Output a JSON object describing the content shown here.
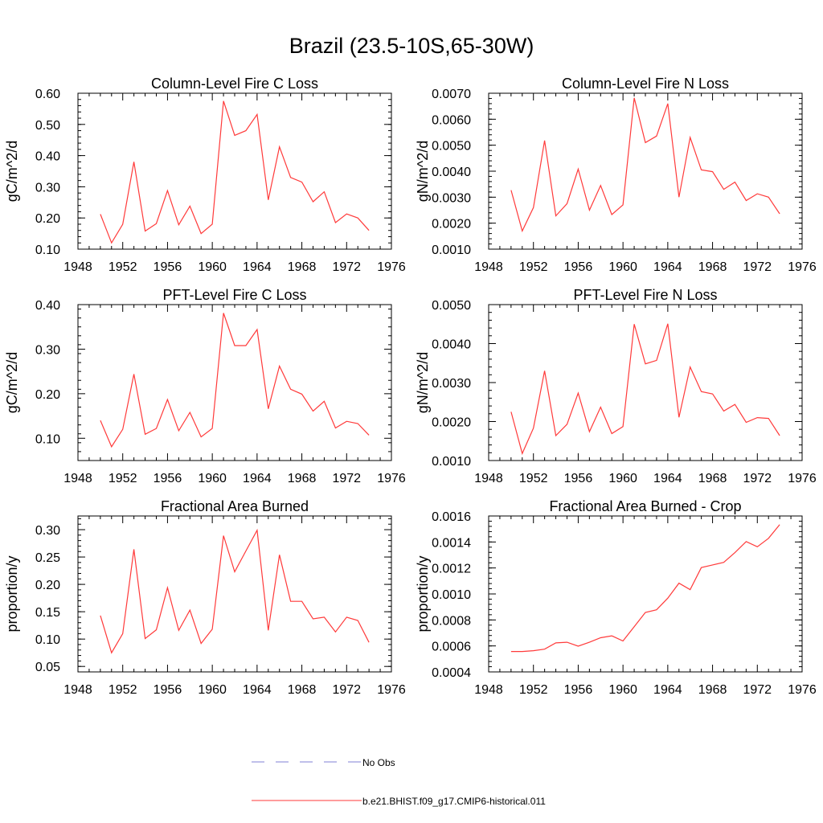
{
  "figure": {
    "title": "Brazil (23.5-10S,65-30W)"
  },
  "legend": {
    "items": [
      {
        "label": "No Obs",
        "color": "#7f7fd6",
        "dash": true
      },
      {
        "label": "b.e21.BHIST.f09_g17.CMIP6-historical.011",
        "color": "#ff3a3a",
        "dash": false
      }
    ]
  },
  "chart_data": [
    {
      "type": "line",
      "title": "Column-Level Fire C Loss",
      "ylabel": "gC/m^2/d",
      "xlim": [
        1948,
        1976
      ],
      "ylim": [
        0.1,
        0.6
      ],
      "xticks": [
        1948,
        1952,
        1956,
        1960,
        1964,
        1968,
        1972,
        1976
      ],
      "yticks": [
        0.1,
        0.2,
        0.3,
        0.4,
        0.5,
        0.6
      ],
      "ytick_labels": [
        "0.10",
        "0.20",
        "0.30",
        "0.40",
        "0.50",
        "0.60"
      ],
      "x": [
        1950,
        1951,
        1952,
        1953,
        1954,
        1955,
        1956,
        1957,
        1958,
        1959,
        1960,
        1961,
        1962,
        1963,
        1964,
        1965,
        1966,
        1967,
        1968,
        1969,
        1970,
        1971,
        1972,
        1973,
        1974
      ],
      "series": [
        {
          "values": [
            0.212,
            0.12,
            0.18,
            0.38,
            0.158,
            0.182,
            0.288,
            0.178,
            0.238,
            0.15,
            0.18,
            0.575,
            0.465,
            0.48,
            0.532,
            0.258,
            0.428,
            0.33,
            0.315,
            0.252,
            0.284,
            0.185,
            0.213,
            0.2,
            0.16
          ]
        }
      ]
    },
    {
      "type": "line",
      "title": "Column-Level Fire N Loss",
      "ylabel": "gN/m^2/d",
      "xlim": [
        1948,
        1976
      ],
      "ylim": [
        0.001,
        0.007
      ],
      "xticks": [
        1948,
        1952,
        1956,
        1960,
        1964,
        1968,
        1972,
        1976
      ],
      "yticks": [
        0.001,
        0.002,
        0.003,
        0.004,
        0.005,
        0.006,
        0.007
      ],
      "ytick_labels": [
        "0.0010",
        "0.0020",
        "0.0030",
        "0.0040",
        "0.0050",
        "0.0060",
        "0.0070"
      ],
      "x": [
        1950,
        1951,
        1952,
        1953,
        1954,
        1955,
        1956,
        1957,
        1958,
        1959,
        1960,
        1961,
        1962,
        1963,
        1964,
        1965,
        1966,
        1967,
        1968,
        1969,
        1970,
        1971,
        1972,
        1973,
        1974
      ],
      "series": [
        {
          "values": [
            0.00327,
            0.0017,
            0.0026,
            0.00518,
            0.00228,
            0.00275,
            0.00408,
            0.0025,
            0.00345,
            0.00233,
            0.0027,
            0.00682,
            0.0051,
            0.00535,
            0.0066,
            0.003,
            0.0053,
            0.00405,
            0.00398,
            0.0033,
            0.00358,
            0.00287,
            0.00313,
            0.003,
            0.00236
          ]
        }
      ]
    },
    {
      "type": "line",
      "title": "PFT-Level Fire C Loss",
      "ylabel": "gC/m^2/d",
      "xlim": [
        1948,
        1976
      ],
      "ylim": [
        0.05,
        0.4
      ],
      "xticks": [
        1948,
        1952,
        1956,
        1960,
        1964,
        1968,
        1972,
        1976
      ],
      "yticks": [
        0.1,
        0.2,
        0.3,
        0.4
      ],
      "ytick_labels": [
        "0.10",
        "0.20",
        "0.30",
        "0.40"
      ],
      "x": [
        1950,
        1951,
        1952,
        1953,
        1954,
        1955,
        1956,
        1957,
        1958,
        1959,
        1960,
        1961,
        1962,
        1963,
        1964,
        1965,
        1966,
        1967,
        1968,
        1969,
        1970,
        1971,
        1972,
        1973,
        1974
      ],
      "series": [
        {
          "values": [
            0.14,
            0.081,
            0.12,
            0.244,
            0.109,
            0.122,
            0.187,
            0.117,
            0.158,
            0.103,
            0.122,
            0.381,
            0.308,
            0.308,
            0.344,
            0.166,
            0.262,
            0.21,
            0.199,
            0.161,
            0.183,
            0.123,
            0.138,
            0.133,
            0.107
          ]
        }
      ]
    },
    {
      "type": "line",
      "title": "PFT-Level Fire N Loss",
      "ylabel": "gN/m^2/d",
      "xlim": [
        1948,
        1976
      ],
      "ylim": [
        0.001,
        0.005
      ],
      "xticks": [
        1948,
        1952,
        1956,
        1960,
        1964,
        1968,
        1972,
        1976
      ],
      "yticks": [
        0.001,
        0.002,
        0.003,
        0.004,
        0.005
      ],
      "ytick_labels": [
        "0.0010",
        "0.0020",
        "0.0030",
        "0.0040",
        "0.0050"
      ],
      "x": [
        1950,
        1951,
        1952,
        1953,
        1954,
        1955,
        1956,
        1957,
        1958,
        1959,
        1960,
        1961,
        1962,
        1963,
        1964,
        1965,
        1966,
        1967,
        1968,
        1969,
        1970,
        1971,
        1972,
        1973,
        1974
      ],
      "series": [
        {
          "values": [
            0.00225,
            0.00118,
            0.00183,
            0.0033,
            0.00164,
            0.00193,
            0.00273,
            0.00174,
            0.00237,
            0.00169,
            0.00187,
            0.0045,
            0.00348,
            0.00357,
            0.00451,
            0.00211,
            0.0034,
            0.00277,
            0.00271,
            0.00227,
            0.00244,
            0.00198,
            0.0021,
            0.00208,
            0.00164
          ]
        }
      ]
    },
    {
      "type": "line",
      "title": "Fractional Area Burned",
      "ylabel": "proportion/y",
      "xlim": [
        1948,
        1976
      ],
      "ylim": [
        0.04,
        0.325
      ],
      "xticks": [
        1948,
        1952,
        1956,
        1960,
        1964,
        1968,
        1972,
        1976
      ],
      "yticks": [
        0.05,
        0.1,
        0.15,
        0.2,
        0.25,
        0.3
      ],
      "ytick_labels": [
        "0.05",
        "0.10",
        "0.15",
        "0.20",
        "0.25",
        "0.30"
      ],
      "x": [
        1950,
        1951,
        1952,
        1953,
        1954,
        1955,
        1956,
        1957,
        1958,
        1959,
        1960,
        1961,
        1962,
        1963,
        1964,
        1965,
        1966,
        1967,
        1968,
        1969,
        1970,
        1971,
        1972,
        1973,
        1974
      ],
      "series": [
        {
          "values": [
            0.143,
            0.075,
            0.11,
            0.264,
            0.101,
            0.117,
            0.194,
            0.116,
            0.153,
            0.092,
            0.118,
            0.289,
            0.223,
            0.261,
            0.299,
            0.116,
            0.254,
            0.169,
            0.169,
            0.137,
            0.14,
            0.113,
            0.14,
            0.134,
            0.094
          ]
        }
      ]
    },
    {
      "type": "line",
      "title": "Fractional Area Burned - Crop",
      "ylabel": "proportion/y",
      "xlim": [
        1948,
        1976
      ],
      "ylim": [
        0.0004,
        0.0016
      ],
      "xticks": [
        1948,
        1952,
        1956,
        1960,
        1964,
        1968,
        1972,
        1976
      ],
      "yticks": [
        0.0004,
        0.0006,
        0.0008,
        0.001,
        0.0012,
        0.0014,
        0.0016
      ],
      "ytick_labels": [
        "0.0004",
        "0.0006",
        "0.0008",
        "0.0010",
        "0.0012",
        "0.0014",
        "0.0016"
      ],
      "x": [
        1950,
        1951,
        1952,
        1953,
        1954,
        1955,
        1956,
        1957,
        1958,
        1959,
        1960,
        1961,
        1962,
        1963,
        1964,
        1965,
        1966,
        1967,
        1968,
        1969,
        1970,
        1971,
        1972,
        1973,
        1974
      ],
      "series": [
        {
          "values": [
            0.000557,
            0.000557,
            0.000563,
            0.000575,
            0.000623,
            0.000628,
            0.000598,
            0.000628,
            0.000663,
            0.000678,
            0.000638,
            0.000748,
            0.000858,
            0.000878,
            0.000968,
            0.001083,
            0.001033,
            0.001203,
            0.001223,
            0.001243,
            0.001318,
            0.001403,
            0.001363,
            0.001428,
            0.001533
          ]
        }
      ]
    }
  ]
}
